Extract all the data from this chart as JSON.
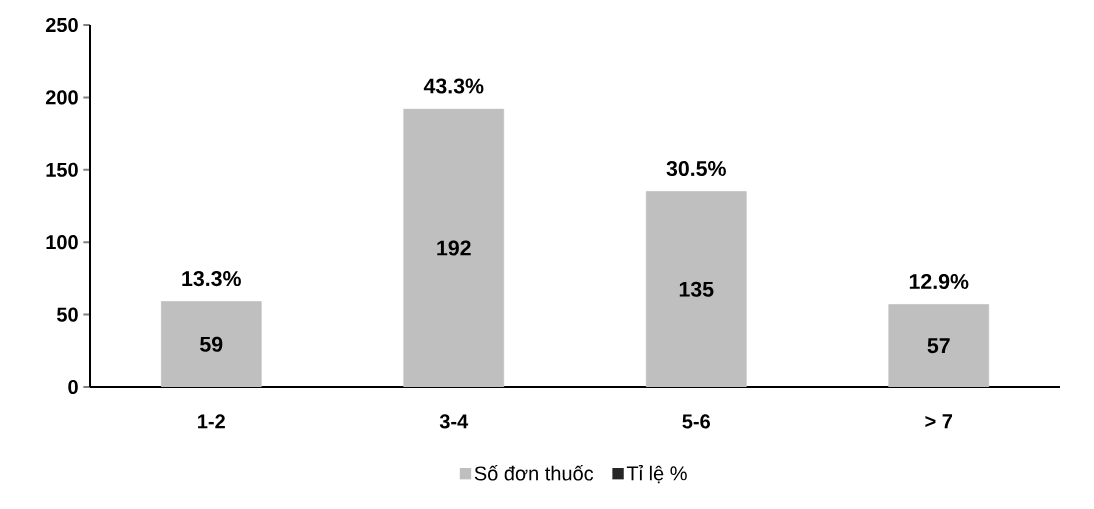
{
  "chart_data": {
    "type": "bar",
    "categories": [
      "1-2",
      "3-4",
      "5-6",
      "> 7"
    ],
    "series": [
      {
        "name": "Số đơn thuốc",
        "color": "#bfbfbf",
        "values": [
          59,
          192,
          135,
          57
        ],
        "value_labels": [
          "59",
          "192",
          "135",
          "57"
        ]
      },
      {
        "name": "Tỉ lệ %",
        "color": "#262626",
        "values": [
          null,
          null,
          null,
          null
        ]
      }
    ],
    "annotations": [
      {
        "text": "13.3%",
        "x": "1-2",
        "y": 59
      },
      {
        "text": "43.3%",
        "x": "3-4",
        "y": 192
      },
      {
        "text": "30.5%",
        "x": "5-6",
        "y": 135
      },
      {
        "text": "12.9%",
        "x": "> 7",
        "y": 57
      }
    ],
    "ylim": [
      0,
      250
    ],
    "yticks": [
      0,
      50,
      100,
      150,
      200,
      250
    ],
    "grid": false,
    "legend": "bottom"
  }
}
